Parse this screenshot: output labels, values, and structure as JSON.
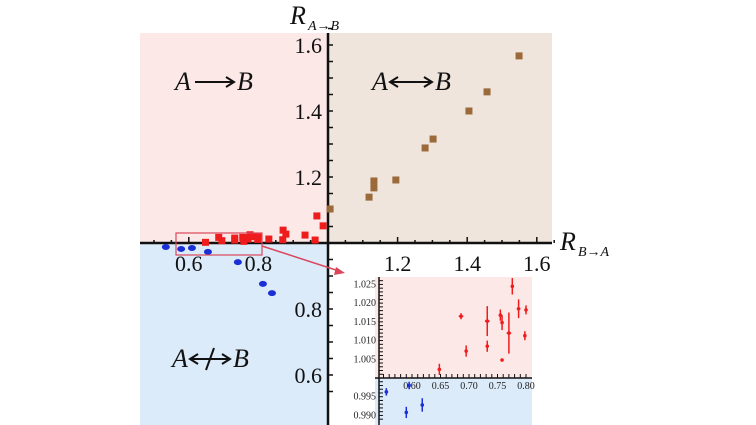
{
  "chart_data": {
    "type": "scatter",
    "xlabel": "R",
    "xlabel_sub": "B→A",
    "ylabel": "R",
    "ylabel_sub": "A→B",
    "xlim": [
      0.5,
      1.65
    ],
    "ylim": [
      0.55,
      1.65
    ],
    "x_ticks": [
      "0.6",
      "0.8",
      "1.2",
      "1.4",
      "1.6"
    ],
    "x_tick_values": [
      0.6,
      0.8,
      1.2,
      1.4,
      1.6
    ],
    "y_ticks": [
      "1.6",
      "1.4",
      "1.2",
      "0.8",
      "0.6"
    ],
    "y_tick_values": [
      1.6,
      1.4,
      1.2,
      0.8,
      0.6
    ],
    "regions": [
      {
        "label_a": "A",
        "label_b": "B",
        "arrow": "right",
        "color": "#fde8e8"
      },
      {
        "label_a": "A",
        "label_b": "B",
        "arrow": "both",
        "color": "#efe5dc"
      },
      {
        "label_a": "A",
        "label_b": "B",
        "arrow": "crossed",
        "color": "#dcebfa"
      }
    ],
    "colors": {
      "brown": "#9a6a3a",
      "red": "#ee1c1c",
      "blue": "#1a2fd6",
      "box": "#d9475a"
    },
    "series": [
      {
        "name": "brown",
        "points": [
          [
            1.006,
            1.103
          ],
          [
            1.118,
            1.139
          ],
          [
            1.132,
            1.167
          ],
          [
            1.132,
            1.188
          ],
          [
            1.195,
            1.191
          ],
          [
            1.279,
            1.288
          ],
          [
            1.302,
            1.315
          ],
          [
            1.405,
            1.4
          ],
          [
            1.457,
            1.458
          ],
          [
            1.549,
            1.567
          ]
        ]
      },
      {
        "name": "red",
        "points": [
          [
            0.968,
            1.082
          ],
          [
            0.986,
            1.052
          ],
          [
            0.871,
            1.039
          ],
          [
            0.879,
            1.027
          ],
          [
            0.934,
            1.024
          ],
          [
            0.963,
            1.009
          ],
          [
            0.83,
            1.012
          ],
          [
            0.87,
            1.01
          ],
          [
            0.648,
            1.002
          ],
          [
            0.686,
            1.017
          ],
          [
            0.695,
            1.007
          ],
          [
            0.732,
            1.015
          ],
          [
            0.732,
            1.009
          ],
          [
            0.755,
            1.017
          ],
          [
            0.758,
            1.015
          ],
          [
            0.77,
            1.012
          ],
          [
            0.776,
            1.025
          ],
          [
            0.787,
            1.019
          ],
          [
            0.8,
            1.018
          ],
          [
            0.798,
            1.011
          ],
          [
            0.758,
            1.005
          ]
        ]
      },
      {
        "name": "blue",
        "points": [
          [
            0.534,
            0.988
          ],
          [
            0.578,
            0.982
          ],
          [
            0.609,
            0.985
          ],
          [
            0.655,
            0.973
          ],
          [
            0.741,
            0.942
          ],
          [
            0.813,
            0.876
          ],
          [
            0.839,
            0.848
          ]
        ]
      }
    ],
    "inset": {
      "xlim": [
        0.545,
        0.81
      ],
      "ylim": [
        0.988,
        1.027
      ],
      "x_ticks": [
        "0.60",
        "0.65",
        "0.70",
        "0.75",
        "0.80"
      ],
      "x_tick_values": [
        0.6,
        0.65,
        0.7,
        0.75,
        0.8
      ],
      "y_ticks": [
        "1.025",
        "1.020",
        "1.015",
        "1.010",
        "1.005",
        "0.995",
        "0.990"
      ],
      "y_tick_values": [
        1.025,
        1.02,
        1.015,
        1.01,
        1.005,
        0.995,
        0.99
      ],
      "red": [
        [
          0.648,
          1.0023,
          0.006,
          0.0015
        ],
        [
          0.686,
          1.0165,
          0.008,
          0.0008
        ],
        [
          0.695,
          1.0072,
          0.004,
          0.0015
        ],
        [
          0.732,
          1.0152,
          0.008,
          0.004
        ],
        [
          0.732,
          1.0085,
          0.003,
          0.0015
        ],
        [
          0.755,
          1.0168,
          0.005,
          0.0015
        ],
        [
          0.758,
          1.0148,
          0.005,
          0.002
        ],
        [
          0.77,
          1.012,
          0.008,
          0.0055
        ],
        [
          0.776,
          1.0245,
          0.004,
          0.0022
        ],
        [
          0.787,
          1.0185,
          0.006,
          0.0025
        ],
        [
          0.8,
          1.0182,
          0.004,
          0.0012
        ],
        [
          0.798,
          1.0113,
          0.004,
          0.0012
        ],
        [
          0.758,
          1.0048,
          0.001,
          0.0004
        ]
      ],
      "blue": [
        [
          0.555,
          0.9963,
          0.006,
          0.001
        ],
        [
          0.59,
          0.9908,
          0.004,
          0.0015
        ],
        [
          0.595,
          0.998,
          0.003,
          0.001
        ],
        [
          0.618,
          0.9928,
          0.006,
          0.0018
        ]
      ]
    }
  }
}
